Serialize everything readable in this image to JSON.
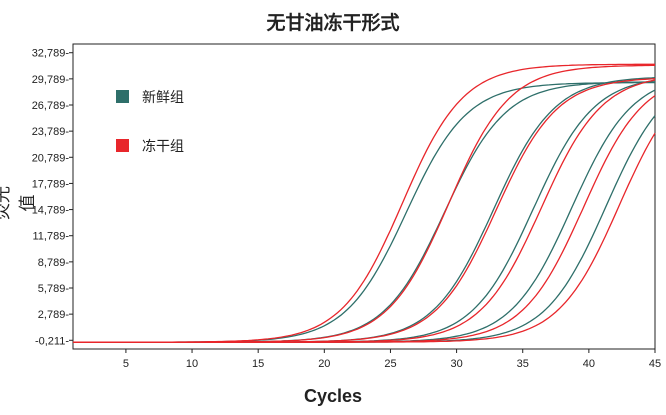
{
  "chart_data": {
    "type": "line",
    "title": "无甘油冻干形式",
    "xlabel": "Cycles",
    "ylabel": "荧光值",
    "xlim": [
      1,
      45
    ],
    "ylim": [
      -1211,
      33789
    ],
    "x_ticks": [
      5,
      10,
      15,
      20,
      25,
      30,
      35,
      40,
      45
    ],
    "y_ticks": [
      -211,
      2789,
      5789,
      8789,
      11789,
      14789,
      17789,
      20789,
      23789,
      26789,
      29789,
      32789
    ],
    "y_tick_labels": [
      "-0,211-",
      "2,789-",
      "5,789-",
      "8,789-",
      "11,789-",
      "14,789-",
      "17,789-",
      "20,789-",
      "23,789-",
      "26,789-",
      "29,789-",
      "32,789-"
    ],
    "legend": [
      {
        "label": "新鲜组",
        "color": "#2e6f6a"
      },
      {
        "label": "冻干组",
        "color": "#e8262b"
      }
    ],
    "grid": false,
    "legend_position": "top-left",
    "series": [
      {
        "name": "新鲜组",
        "color": "#2e6f6a",
        "midpoint": 26.2,
        "slope": 2.3,
        "plateau": 29800
      },
      {
        "name": "新鲜组",
        "color": "#2e6f6a",
        "midpoint": 29.1,
        "slope": 2.3,
        "plateau": 29900
      },
      {
        "name": "新鲜组",
        "color": "#2e6f6a",
        "midpoint": 32.8,
        "slope": 2.3,
        "plateau": 30500
      },
      {
        "name": "新鲜组",
        "color": "#2e6f6a",
        "midpoint": 35.8,
        "slope": 2.3,
        "plateau": 30600
      },
      {
        "name": "新鲜组",
        "color": "#2e6f6a",
        "midpoint": 38.7,
        "slope": 2.3,
        "plateau": 30800
      },
      {
        "name": "新鲜组",
        "color": "#2e6f6a",
        "midpoint": 41.3,
        "slope": 2.3,
        "plateau": 31200
      },
      {
        "name": "冻干组",
        "color": "#e8262b",
        "midpoint": 25.9,
        "slope": 2.3,
        "plateau": 31900
      },
      {
        "name": "冻干组",
        "color": "#e8262b",
        "midpoint": 29.4,
        "slope": 2.3,
        "plateau": 31800
      },
      {
        "name": "冻干组",
        "color": "#e8262b",
        "midpoint": 33.0,
        "slope": 2.3,
        "plateau": 30400
      },
      {
        "name": "冻干组",
        "color": "#e8262b",
        "midpoint": 36.4,
        "slope": 2.3,
        "plateau": 30800
      },
      {
        "name": "冻干组",
        "color": "#e8262b",
        "midpoint": 39.6,
        "slope": 2.3,
        "plateau": 31000
      },
      {
        "name": "冻干组",
        "color": "#e8262b",
        "midpoint": 42.3,
        "slope": 2.3,
        "plateau": 31400
      }
    ]
  }
}
